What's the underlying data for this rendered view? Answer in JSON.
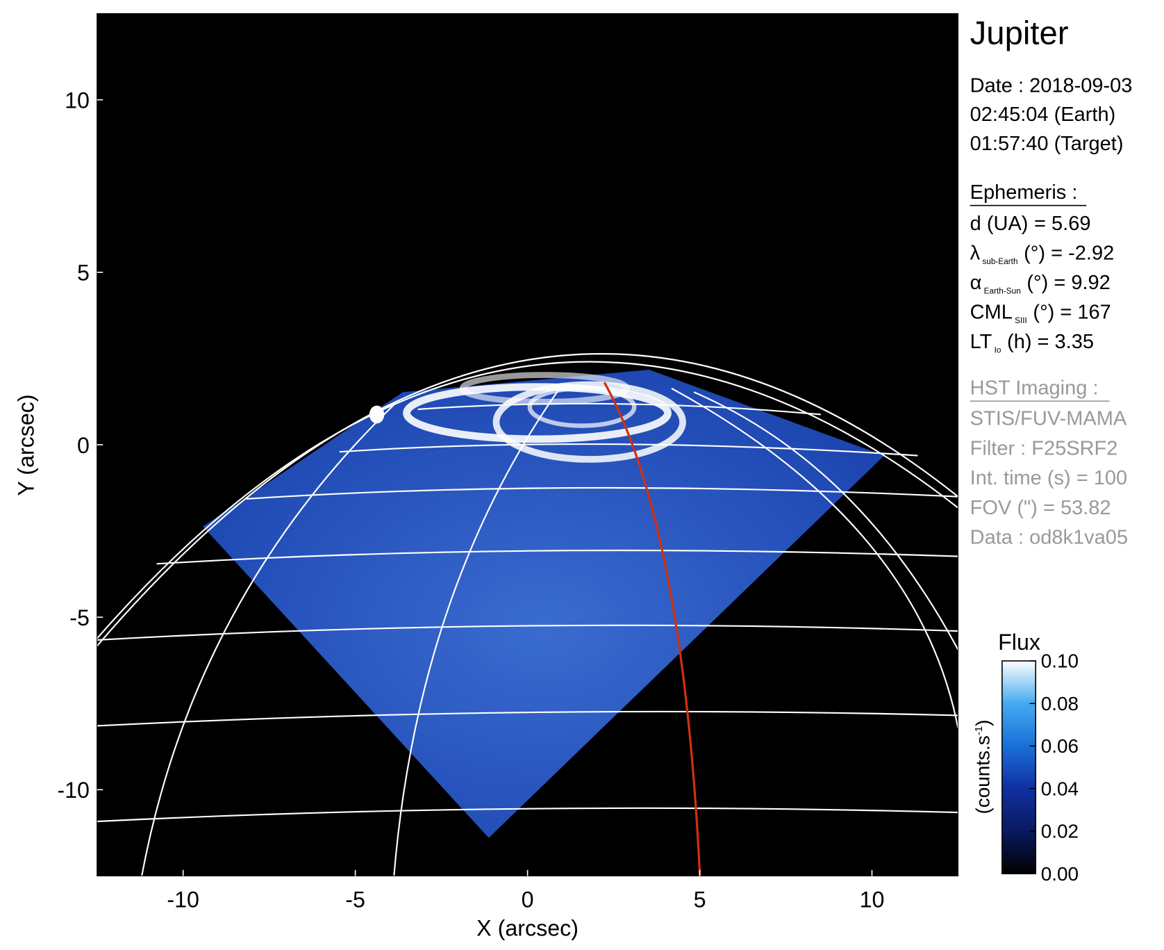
{
  "chart_data": {
    "type": "image",
    "title": "Jupiter",
    "xlabel": "X (arcsec)",
    "ylabel": "Y (arcsec)",
    "xlim": [
      -12.5,
      12.5
    ],
    "ylim": [
      -12.5,
      12.5
    ],
    "xticks": [
      -10,
      -5,
      0,
      5,
      10
    ],
    "yticks": [
      -10,
      -5,
      0,
      5,
      10
    ],
    "colorbar": {
      "title": "Flux",
      "label": [
        "(counts.s",
        "-1",
        ")"
      ],
      "clim": [
        0,
        0.1
      ],
      "ticks": [
        {
          "value": 0,
          "label": "0.00"
        },
        {
          "value": 0.02,
          "label": "0.02"
        },
        {
          "value": 0.04,
          "label": "0.04"
        },
        {
          "value": 0.06,
          "label": "0.06"
        },
        {
          "value": 0.08,
          "label": "0.08"
        },
        {
          "value": 0.1,
          "label": "0.10"
        }
      ]
    },
    "info": {
      "date": [
        "Date : 2018-09-03",
        "02:45:04 (Earth)",
        "01:57:40 (Target)"
      ],
      "ephemeris_title": "Ephemeris :",
      "ephemeris": [
        {
          "symbol": "d (UA)",
          "text": "= 5.69"
        },
        {
          "symbol": "λ",
          "sub": "sub-Earth",
          "text": "(°) = -2.92"
        },
        {
          "symbol": "α",
          "sub": "Earth-Sun",
          "text": "(°) = 9.92"
        },
        {
          "symbol": "CML",
          "sub": "SIII",
          "text": "(°) = 167"
        },
        {
          "symbol": "LT",
          "sub": "Io",
          "text": "(h) = 3.35"
        }
      ],
      "hst_title": "HST Imaging :",
      "hst": [
        "STIS/FUV-MAMA",
        "Filter : F25SRF2",
        "Int. time (s) = 100",
        "FOV (\") = 53.82",
        "Data : od8k1va05"
      ]
    }
  }
}
